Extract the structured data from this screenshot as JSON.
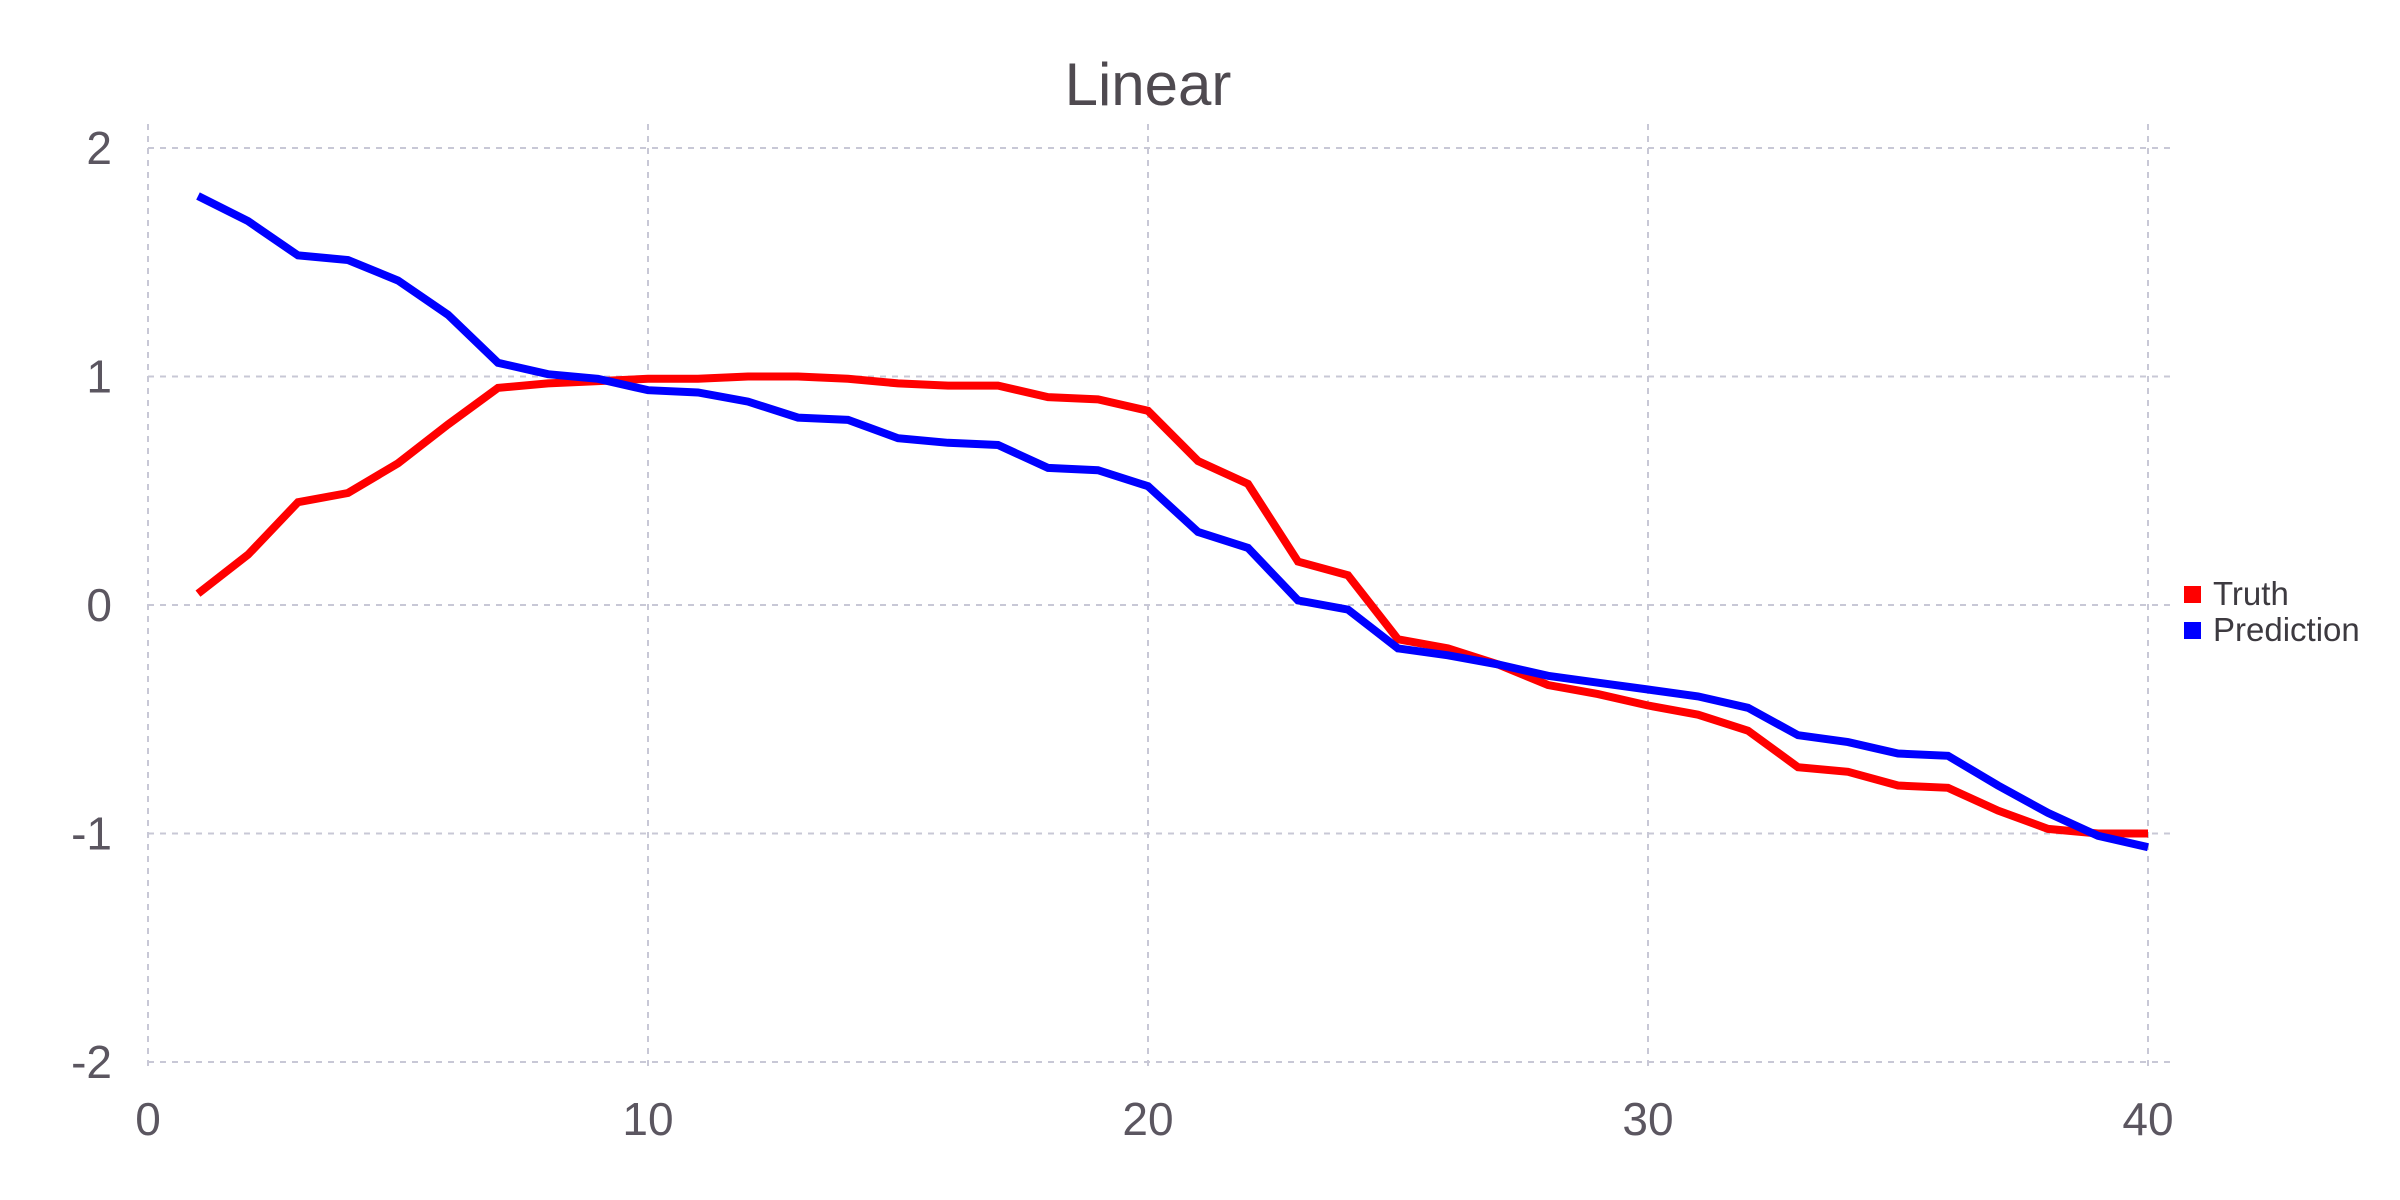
{
  "chart_data": {
    "type": "line",
    "title": "Linear",
    "xlabel": "",
    "ylabel": "",
    "xlim": [
      0,
      40
    ],
    "ylim": [
      -2,
      2
    ],
    "xticks": [
      0,
      10,
      20,
      30,
      40
    ],
    "yticks": [
      -2,
      -1,
      0,
      1,
      2
    ],
    "grid": true,
    "legend_position": "right",
    "x": [
      1,
      2,
      3,
      4,
      5,
      6,
      7,
      8,
      9,
      10,
      11,
      12,
      13,
      14,
      15,
      16,
      17,
      18,
      19,
      20,
      21,
      22,
      23,
      24,
      25,
      26,
      27,
      28,
      29,
      30,
      31,
      32,
      33,
      34,
      35,
      36,
      37,
      38,
      39,
      40
    ],
    "series": [
      {
        "name": "Truth",
        "color": "#ff0000",
        "values": [
          0.05,
          0.22,
          0.45,
          0.49,
          0.62,
          0.79,
          0.95,
          0.97,
          0.98,
          0.99,
          0.99,
          1.0,
          1.0,
          0.99,
          0.97,
          0.96,
          0.96,
          0.91,
          0.9,
          0.85,
          0.63,
          0.53,
          0.19,
          0.13,
          -0.15,
          -0.19,
          -0.26,
          -0.35,
          -0.39,
          -0.44,
          -0.48,
          -0.55,
          -0.71,
          -0.73,
          -0.79,
          -0.8,
          -0.9,
          -0.98,
          -1.0,
          -1.0
        ]
      },
      {
        "name": "Prediction",
        "color": "#0000ff",
        "values": [
          1.79,
          1.68,
          1.53,
          1.51,
          1.42,
          1.27,
          1.06,
          1.01,
          0.99,
          0.94,
          0.93,
          0.89,
          0.82,
          0.81,
          0.73,
          0.71,
          0.7,
          0.6,
          0.59,
          0.52,
          0.32,
          0.25,
          0.02,
          -0.02,
          -0.19,
          -0.22,
          -0.26,
          -0.31,
          -0.34,
          -0.37,
          -0.4,
          -0.45,
          -0.57,
          -0.6,
          -0.65,
          -0.66,
          -0.79,
          -0.91,
          -1.01,
          -1.06
        ]
      }
    ]
  }
}
